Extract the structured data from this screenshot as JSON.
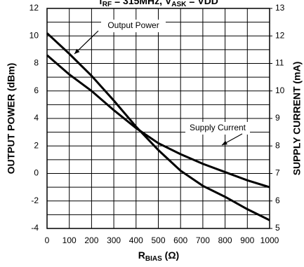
{
  "chart_data": {
    "type": "line",
    "title": [
      "f",
      "RF",
      " = 315MHz, V",
      "ASK",
      " = VDD"
    ],
    "x_label": [
      "R",
      "BIAS",
      " (Ω)"
    ],
    "y_label": "OUTPUT POWER (dBm)",
    "y2_label": "SUPPLY CURRENT (mA)",
    "x": [
      0,
      100,
      200,
      300,
      400,
      500,
      600,
      700,
      800,
      900,
      1000
    ],
    "xlim": [
      0,
      1000
    ],
    "xticks": [
      0,
      100,
      200,
      300,
      400,
      500,
      600,
      700,
      800,
      900,
      1000
    ],
    "ylim": [
      -4,
      12
    ],
    "yticks": [
      -4,
      -2,
      0,
      2,
      4,
      6,
      8,
      10,
      12
    ],
    "y2lim": [
      5,
      13
    ],
    "y2ticks": [
      5,
      6,
      7,
      8,
      9,
      10,
      11,
      12,
      13
    ],
    "grid": true,
    "series": [
      {
        "name": "Output Power",
        "color": "#000000",
        "values": [
          10.2,
          8.7,
          7.1,
          5.3,
          3.4,
          1.7,
          0.2,
          -0.9,
          -1.7,
          -2.6,
          -3.4
        ]
      },
      {
        "name": "Supply Current",
        "color": "#000000",
        "axis": "y2",
        "values": [
          11.3,
          10.6,
          10.0,
          9.3,
          8.65,
          8.1,
          7.7,
          7.35,
          7.05,
          6.75,
          6.5
        ]
      }
    ]
  }
}
